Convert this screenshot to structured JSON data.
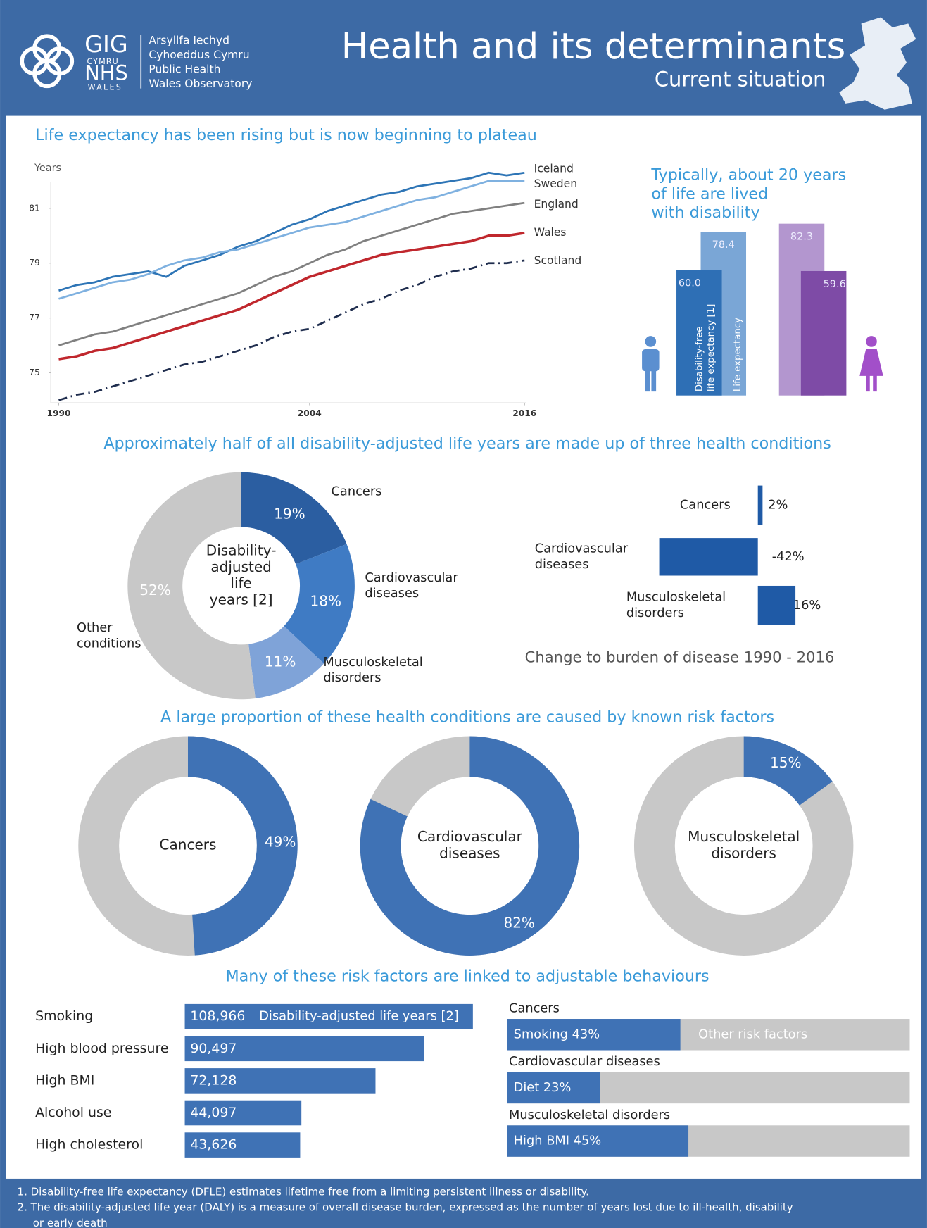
{
  "header": {
    "logo": {
      "gig": "GIG",
      "cymru": "CYMRU",
      "nhs": "NHS",
      "wales": "WALES",
      "org_lines": [
        "Arsyllfa Iechyd",
        "Cyhoeddus Cymru",
        "Public Health",
        "Wales Observatory"
      ]
    },
    "title": "Health and its determinants",
    "subtitle": "Current situation"
  },
  "chart_data": [
    {
      "type": "line",
      "title": "Life expectancy has been rising but is now beginning to plateau",
      "y_label": "Years",
      "x": [
        1990,
        1991,
        1992,
        1993,
        1994,
        1995,
        1996,
        1997,
        1998,
        1999,
        2000,
        2001,
        2002,
        2003,
        2004,
        2005,
        2006,
        2007,
        2008,
        2009,
        2010,
        2011,
        2012,
        2013,
        2014,
        2015,
        2016
      ],
      "xlim": [
        1990,
        2016
      ],
      "xticks": [
        1990,
        2004,
        2016
      ],
      "ylim": [
        73.9,
        82.4
      ],
      "yticks": [
        75,
        77,
        79,
        81
      ],
      "series": [
        {
          "name": "Iceland",
          "color": "#2e75b6",
          "values": [
            78.0,
            78.2,
            78.3,
            78.5,
            78.6,
            78.7,
            78.5,
            78.9,
            79.1,
            79.3,
            79.6,
            79.8,
            80.1,
            80.4,
            80.6,
            80.9,
            81.1,
            81.3,
            81.5,
            81.6,
            81.8,
            81.9,
            82.0,
            82.1,
            82.3,
            82.2,
            82.3
          ]
        },
        {
          "name": "Sweden",
          "color": "#7fb1e0",
          "values": [
            77.7,
            77.9,
            78.1,
            78.3,
            78.4,
            78.6,
            78.9,
            79.1,
            79.2,
            79.4,
            79.5,
            79.7,
            79.9,
            80.1,
            80.3,
            80.4,
            80.5,
            80.7,
            80.9,
            81.1,
            81.3,
            81.4,
            81.6,
            81.8,
            82.0,
            82.0,
            82.0
          ]
        },
        {
          "name": "England",
          "color": "#808080",
          "values": [
            76.0,
            76.2,
            76.4,
            76.5,
            76.7,
            76.9,
            77.1,
            77.3,
            77.5,
            77.7,
            77.9,
            78.2,
            78.5,
            78.7,
            79.0,
            79.3,
            79.5,
            79.8,
            80.0,
            80.2,
            80.4,
            80.6,
            80.8,
            80.9,
            81.0,
            81.1,
            81.2
          ]
        },
        {
          "name": "Wales",
          "color": "#c0272d",
          "values": [
            75.5,
            75.6,
            75.8,
            75.9,
            76.1,
            76.3,
            76.5,
            76.7,
            76.9,
            77.1,
            77.3,
            77.6,
            77.9,
            78.2,
            78.5,
            78.7,
            78.9,
            79.1,
            79.3,
            79.4,
            79.5,
            79.6,
            79.7,
            79.8,
            80.0,
            80.0,
            80.1
          ]
        },
        {
          "name": "Scotland",
          "color": "#1f2d4e",
          "dashed": true,
          "values": [
            74.0,
            74.2,
            74.3,
            74.5,
            74.7,
            74.9,
            75.1,
            75.3,
            75.4,
            75.6,
            75.8,
            76.0,
            76.3,
            76.5,
            76.6,
            76.9,
            77.2,
            77.5,
            77.7,
            78.0,
            78.2,
            78.5,
            78.7,
            78.8,
            79.0,
            79.0,
            79.1
          ]
        }
      ]
    },
    {
      "type": "bar",
      "title_lines": [
        "Typically, about 20 years",
        "of life are lived",
        "with disability"
      ],
      "series": [
        {
          "label_lines": [
            "Disability-free",
            "life expectancy [1]"
          ],
          "colors": [
            "#2e6fb5",
            "#7e4ba6"
          ],
          "values": [
            60.0,
            59.6
          ],
          "value_labels": [
            "60.0",
            "59.6"
          ]
        },
        {
          "name": "Life expectancy",
          "colors": [
            "#7aa6d6",
            "#b396cf"
          ],
          "values": [
            78.4,
            82.3
          ],
          "value_labels": [
            "78.4",
            "82.3"
          ]
        }
      ]
    },
    {
      "type": "pie",
      "title": "Approximately half of all disability-adjusted life years are made up of three health conditions",
      "center_lines": [
        "Disability-",
        "adjusted",
        "life",
        "years [2]"
      ],
      "categories": [
        [
          "Cancers"
        ],
        [
          "Cardiovascular",
          "diseases"
        ],
        [
          "Musculoskeletal",
          "disorders"
        ],
        [
          "Other",
          "conditions"
        ]
      ],
      "values": [
        19,
        18,
        11,
        52
      ],
      "value_labels": [
        "19%",
        "18%",
        "11%",
        "52%"
      ],
      "colors": [
        "#2b5ea1",
        "#3f7bc4",
        "#7fa3d8",
        "#c8c8c8"
      ]
    },
    {
      "type": "hbar",
      "title": "Change to burden of disease 1990 - 2016",
      "categories": [
        [
          "Cancers"
        ],
        [
          "Cardiovascular",
          "diseases"
        ],
        [
          "Musculoskeletal",
          "disorders"
        ]
      ],
      "values": [
        2,
        -42,
        16
      ],
      "value_labels": [
        "2%",
        "-42%",
        "16%"
      ],
      "color": "#1f5aa6"
    },
    {
      "type": "donut",
      "title": "A large proportion of these health conditions are caused by known risk factors",
      "categories": [
        [
          "Cancers"
        ],
        [
          "Cardiovascular",
          "diseases"
        ],
        [
          "Musculoskeletal",
          "disorders"
        ]
      ],
      "values": [
        49,
        82,
        15
      ],
      "value_labels": [
        "49%",
        "82%",
        "15%"
      ],
      "color": "#3f72b5",
      "rest_color": "#c8c8c8"
    },
    {
      "type": "hbar",
      "title": "Many of these risk factors are linked to adjustable behaviours",
      "categories": [
        [
          "Smoking"
        ],
        [
          "High blood pressure"
        ],
        [
          "High BMI"
        ],
        [
          "Alcohol use"
        ],
        [
          "High cholesterol"
        ]
      ],
      "values": [
        108966,
        90497,
        72128,
        44097,
        43626
      ],
      "value_labels": [
        "108,966",
        "90,497",
        "72,128",
        "44,097",
        "43,626"
      ],
      "annotation": "Disability-adjusted life years [2]",
      "color": "#3f72b5"
    },
    {
      "type": "stacked",
      "categories": [
        "Cancers",
        "Cardiovascular diseases",
        "Musculoskeletal disorders"
      ],
      "values": [
        43,
        23,
        45
      ],
      "value_labels": [
        "Smoking 43%",
        "Diet 23%",
        "High BMI 45%"
      ],
      "rest_label": "Other risk factors",
      "color": "#3f72b5",
      "rest_color": "#c8c8c8"
    }
  ],
  "footnotes": [
    [
      "1. Disability-free life expectancy (DFLE) estimates lifetime free from a limiting persistent illness or disability."
    ],
    [
      "2. The disability-adjusted life year (DALY) is a measure of overall disease burden, expressed as the number of years lost due to ill-health, disability",
      "or early death"
    ]
  ]
}
